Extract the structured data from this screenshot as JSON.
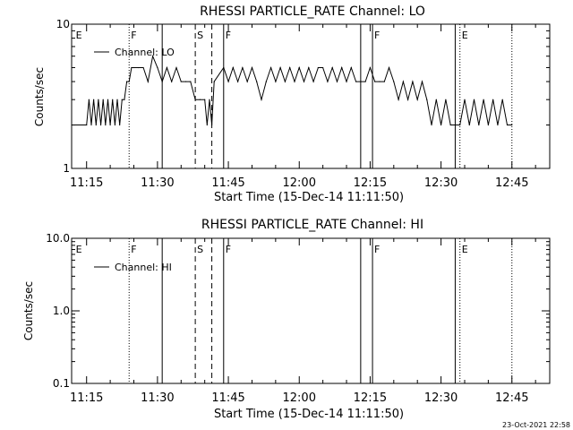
{
  "footer_timestamp": "23-Oct-2021 22:58",
  "chart_data": [
    {
      "type": "line",
      "title": "RHESSI PARTICLE_RATE Channel: LO",
      "xlabel": "Start Time (15-Dec-14 11:11:50)",
      "ylabel": "Counts/sec",
      "y_scale": "log",
      "ylim": [
        1,
        10
      ],
      "y_ticks": [
        {
          "value": 1,
          "label": "1"
        },
        {
          "value": 10,
          "label": "10"
        }
      ],
      "x_range_minutes": [
        "11:11:50",
        "12:53:00"
      ],
      "x_ticks": [
        "11:15",
        "11:30",
        "11:45",
        "12:00",
        "12:15",
        "12:30",
        "12:45"
      ],
      "legend": {
        "label": "Channel: LO",
        "position": "top-left"
      },
      "series": [
        {
          "name": "Channel: LO",
          "color": "#000000",
          "x": [
            "11:11:50",
            "11:15:00",
            "11:15:30",
            "11:16:00",
            "11:16:30",
            "11:17:00",
            "11:17:30",
            "11:18:00",
            "11:18:30",
            "11:19:00",
            "11:19:30",
            "11:20:00",
            "11:20:30",
            "11:21:00",
            "11:21:30",
            "11:22:00",
            "11:22:30",
            "11:23:00",
            "11:23:30",
            "11:24:00",
            "11:24:30",
            "11:25:00",
            "11:26:00",
            "11:27:00",
            "11:28:00",
            "11:29:00",
            "11:30:00",
            "11:31:00",
            "11:32:00",
            "11:33:00",
            "11:34:00",
            "11:35:00",
            "11:36:00",
            "11:37:00",
            "11:38:00",
            "11:39:00",
            "11:40:00",
            "11:40:30",
            "11:41:00",
            "11:41:30",
            "11:42:00",
            "11:44:00",
            "11:45:00",
            "11:46:00",
            "11:47:00",
            "11:48:00",
            "11:49:00",
            "11:50:00",
            "11:51:00",
            "11:52:00",
            "11:53:00",
            "11:54:00",
            "11:55:00",
            "11:56:00",
            "11:57:00",
            "11:58:00",
            "11:59:00",
            "12:00:00",
            "12:01:00",
            "12:02:00",
            "12:03:00",
            "12:04:00",
            "12:05:00",
            "12:06:00",
            "12:07:00",
            "12:08:00",
            "12:09:00",
            "12:10:00",
            "12:11:00",
            "12:12:00",
            "12:13:00",
            "12:14:00",
            "12:15:00",
            "12:16:00",
            "12:17:00",
            "12:18:00",
            "12:19:00",
            "12:20:00",
            "12:21:00",
            "12:22:00",
            "12:23:00",
            "12:24:00",
            "12:25:00",
            "12:26:00",
            "12:27:00",
            "12:28:00",
            "12:29:00",
            "12:30:00",
            "12:31:00",
            "12:32:00",
            "12:33:00",
            "12:34:00",
            "12:35:00",
            "12:36:00",
            "12:37:00",
            "12:38:00",
            "12:39:00",
            "12:40:00",
            "12:41:00",
            "12:42:00",
            "12:43:00",
            "12:44:00",
            "12:45:00"
          ],
          "y": [
            2,
            2,
            3,
            2,
            3,
            2,
            3,
            2,
            3,
            2,
            3,
            2,
            3,
            2,
            3,
            2,
            3,
            3,
            4,
            4,
            5,
            5,
            5,
            5,
            4,
            6,
            5,
            4,
            5,
            4,
            5,
            4,
            4,
            4,
            3,
            3,
            3,
            2,
            3,
            2,
            4,
            5,
            4,
            5,
            4,
            5,
            4,
            5,
            4,
            3,
            4,
            5,
            4,
            5,
            4,
            5,
            4,
            5,
            4,
            5,
            4,
            5,
            5,
            4,
            5,
            4,
            5,
            4,
            5,
            4,
            4,
            4,
            5,
            4,
            4,
            4,
            5,
            4,
            3,
            4,
            3,
            4,
            3,
            4,
            3,
            2,
            3,
            2,
            3,
            2,
            2,
            2,
            3,
            2,
            3,
            2,
            3,
            2,
            3,
            2,
            3,
            2,
            2
          ]
        }
      ],
      "markers": [
        {
          "label": "E",
          "time": "11:12:20",
          "style": "none"
        },
        {
          "label": "F",
          "time": "11:24:00",
          "style": "dotted"
        },
        {
          "label": "",
          "time": "11:31:00",
          "style": "solid"
        },
        {
          "label": "S",
          "time": "11:38:00",
          "style": "dashed"
        },
        {
          "label": "",
          "time": "11:41:30",
          "style": "dashed"
        },
        {
          "label": "F",
          "time": "11:44:00",
          "style": "solid"
        },
        {
          "label": "",
          "time": "12:13:00",
          "style": "solid"
        },
        {
          "label": "F",
          "time": "12:15:30",
          "style": "solid"
        },
        {
          "label": "",
          "time": "12:33:00",
          "style": "solid"
        },
        {
          "label": "E",
          "time": "12:34:00",
          "style": "dotted"
        },
        {
          "label": "",
          "time": "12:45:00",
          "style": "dotted"
        }
      ]
    },
    {
      "type": "line",
      "title": "RHESSI PARTICLE_RATE Channel: HI",
      "xlabel": "Start Time (15-Dec-14 11:11:50)",
      "ylabel": "Counts/sec",
      "y_scale": "log",
      "ylim": [
        0.1,
        10
      ],
      "y_ticks": [
        {
          "value": 0.1,
          "label": "0.1"
        },
        {
          "value": 1,
          "label": "1.0"
        },
        {
          "value": 10,
          "label": "10.0"
        }
      ],
      "x_range_minutes": [
        "11:11:50",
        "12:53:00"
      ],
      "x_ticks": [
        "11:15",
        "11:30",
        "11:45",
        "12:00",
        "12:15",
        "12:30",
        "12:45"
      ],
      "legend": {
        "label": "Channel: HI",
        "position": "top-left"
      },
      "series": [
        {
          "name": "Channel: HI",
          "color": "#000000",
          "x": [],
          "y": []
        }
      ],
      "markers": [
        {
          "label": "E",
          "time": "11:12:20",
          "style": "none"
        },
        {
          "label": "F",
          "time": "11:24:00",
          "style": "dotted"
        },
        {
          "label": "",
          "time": "11:31:00",
          "style": "solid"
        },
        {
          "label": "S",
          "time": "11:38:00",
          "style": "dashed"
        },
        {
          "label": "",
          "time": "11:41:30",
          "style": "dashed"
        },
        {
          "label": "F",
          "time": "11:44:00",
          "style": "solid"
        },
        {
          "label": "",
          "time": "12:13:00",
          "style": "solid"
        },
        {
          "label": "F",
          "time": "12:15:30",
          "style": "solid"
        },
        {
          "label": "",
          "time": "12:33:00",
          "style": "solid"
        },
        {
          "label": "E",
          "time": "12:34:00",
          "style": "dotted"
        },
        {
          "label": "",
          "time": "12:45:00",
          "style": "dotted"
        }
      ]
    }
  ]
}
